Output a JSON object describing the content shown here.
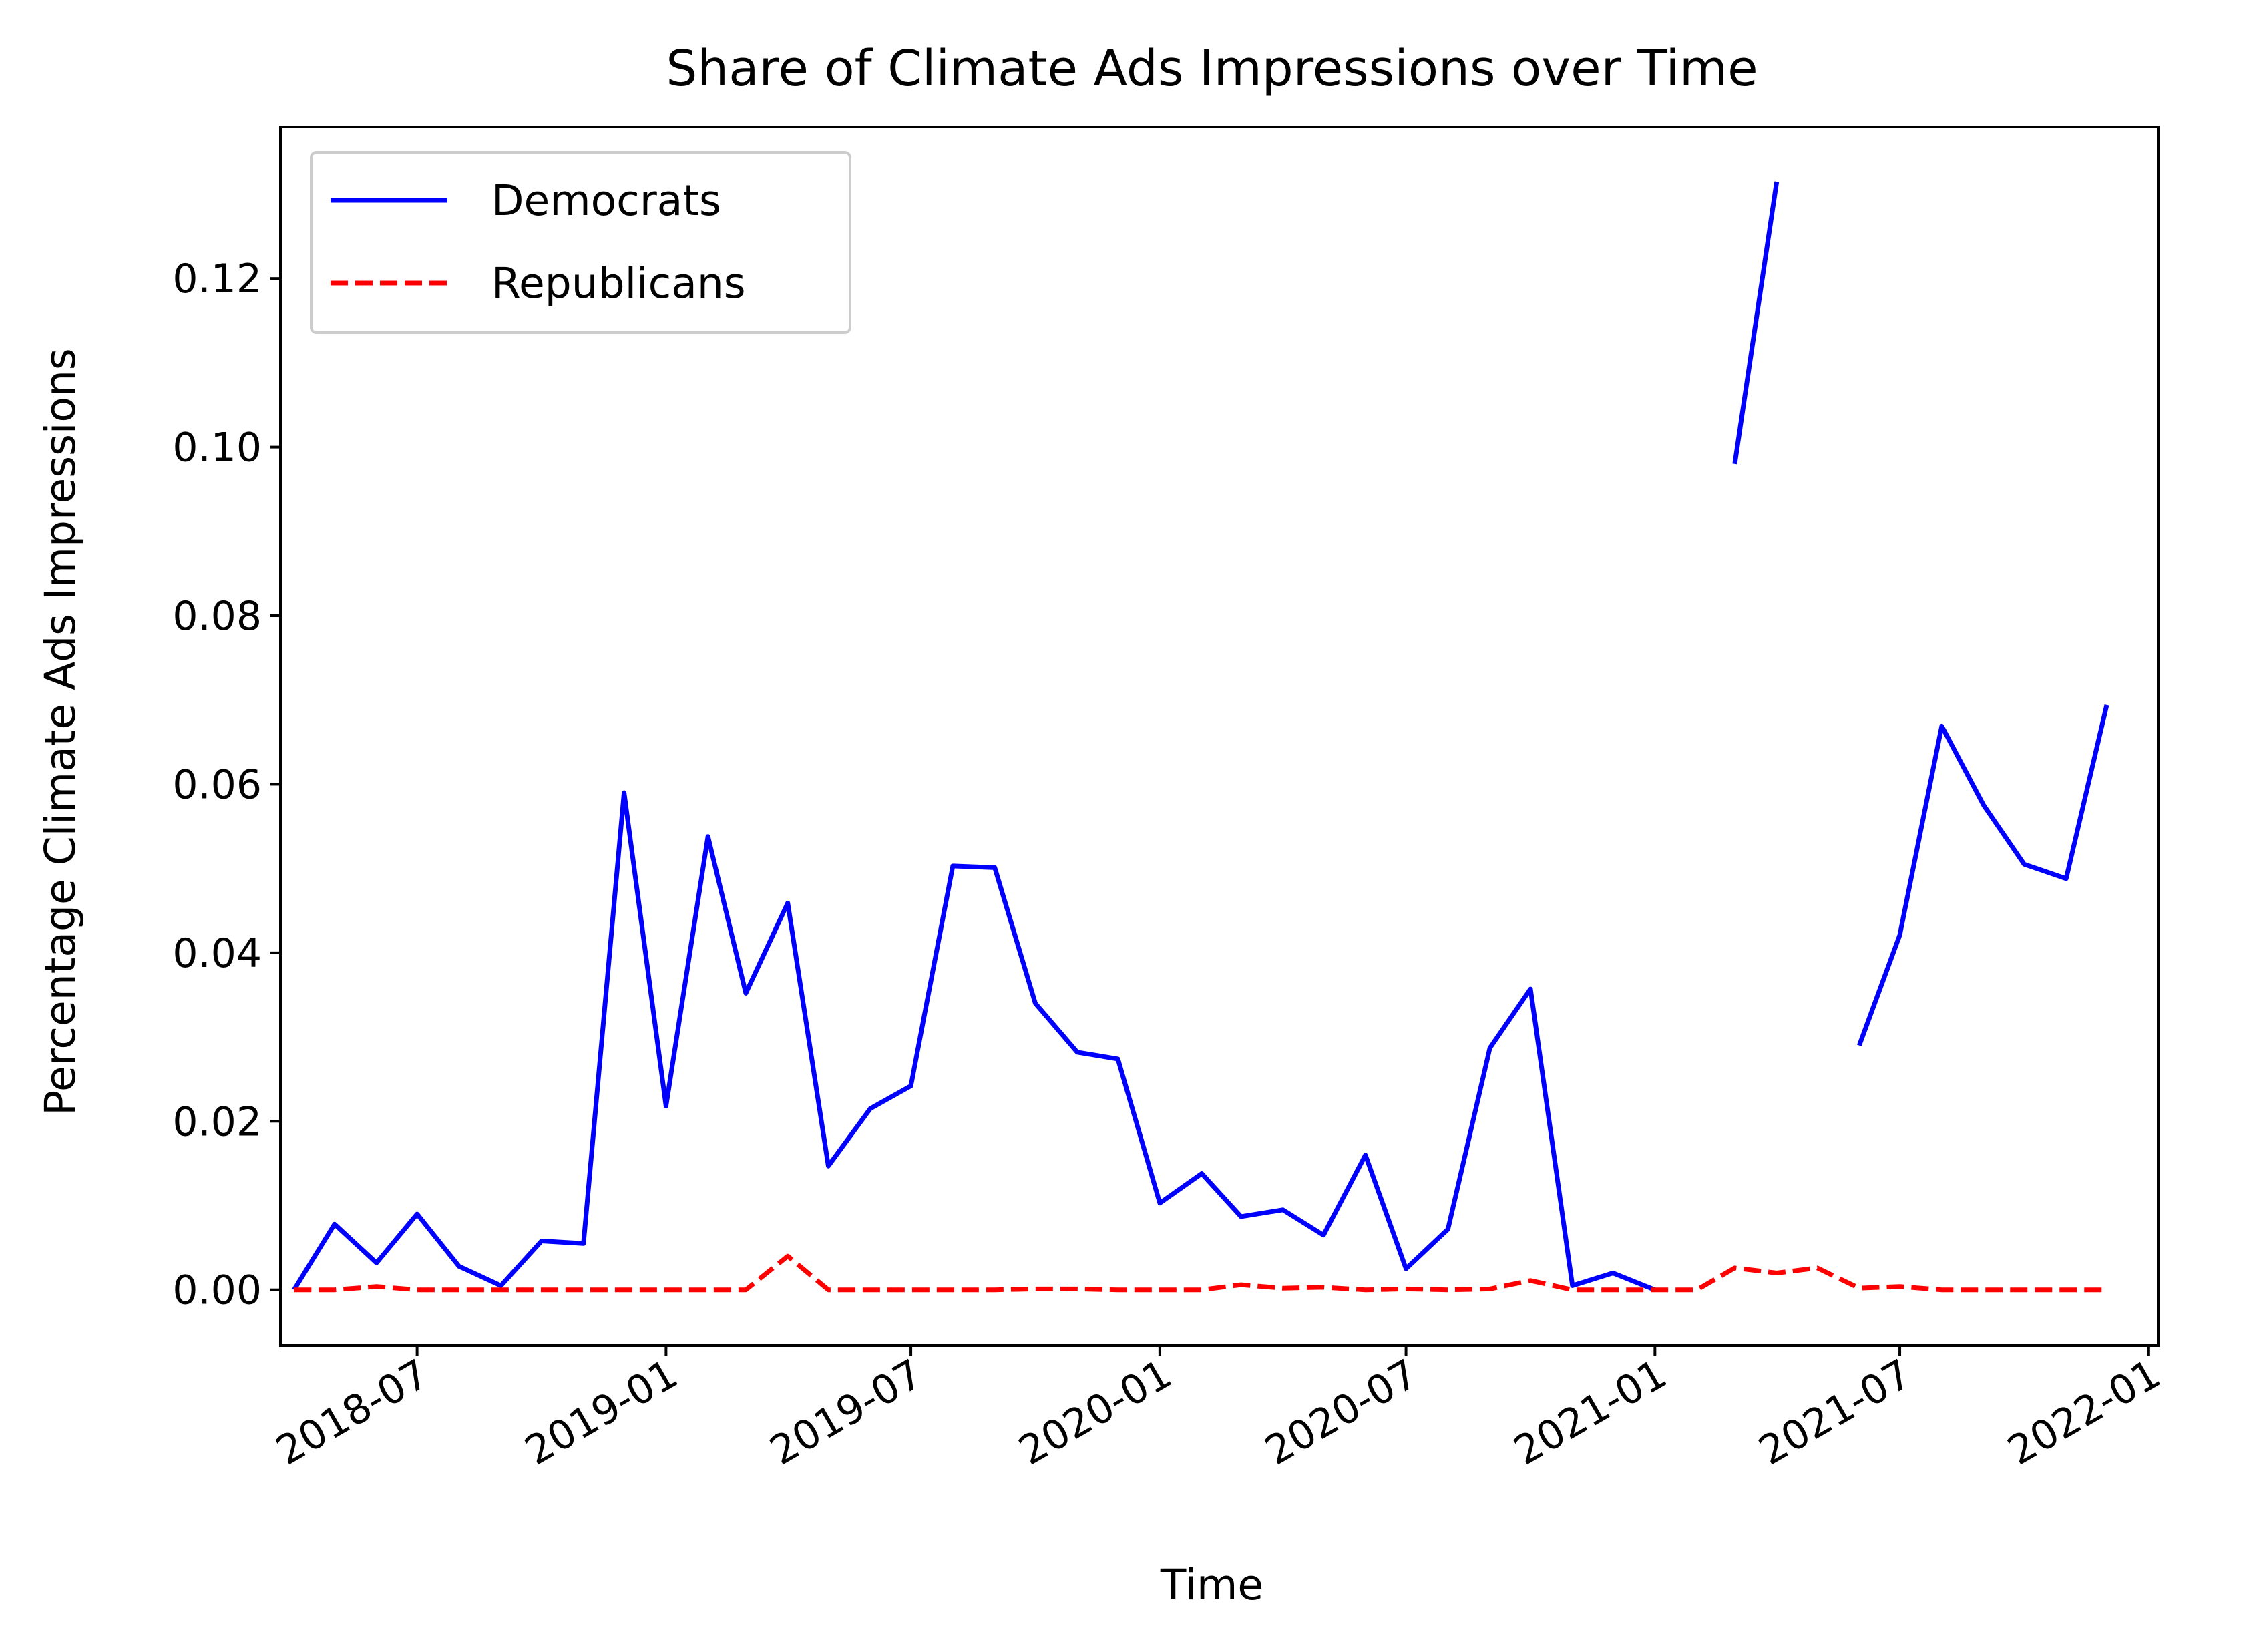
{
  "chart_data": {
    "type": "line",
    "title": "Share of Climate Ads Impressions over Time",
    "xlabel": "Time",
    "ylabel": "Percentage Climate Ads Impressions",
    "x_ticks": [
      "2018-07",
      "2019-01",
      "2019-07",
      "2020-01",
      "2020-07",
      "2021-01",
      "2021-07",
      "2022-01"
    ],
    "y_ticks": [
      "0.00",
      "0.02",
      "0.04",
      "0.06",
      "0.08",
      "0.10",
      "0.12"
    ],
    "xlim": [
      "2018-03-22",
      "2022-01-08"
    ],
    "ylim": [
      -0.0066,
      0.138
    ],
    "grid": false,
    "legend": {
      "position": "top-left"
    },
    "x": [
      "2018-04-01",
      "2018-05-01",
      "2018-06-01",
      "2018-07-01",
      "2018-08-01",
      "2018-09-01",
      "2018-10-01",
      "2018-11-01",
      "2018-12-01",
      "2019-01-01",
      "2019-02-01",
      "2019-03-01",
      "2019-04-01",
      "2019-05-01",
      "2019-06-01",
      "2019-07-01",
      "2019-08-01",
      "2019-09-01",
      "2019-10-01",
      "2019-11-01",
      "2019-12-01",
      "2020-01-01",
      "2020-02-01",
      "2020-03-01",
      "2020-04-01",
      "2020-05-01",
      "2020-06-01",
      "2020-07-01",
      "2020-08-01",
      "2020-09-01",
      "2020-10-01",
      "2020-11-01",
      "2020-12-01",
      "2021-01-01",
      "2021-02-01",
      "2021-03-01",
      "2021-04-01",
      "2021-05-01",
      "2021-06-01",
      "2021-07-01",
      "2021-08-01",
      "2021-09-01",
      "2021-10-01",
      "2021-11-01",
      "2021-12-01"
    ],
    "series": [
      {
        "name": "Democrats",
        "color": "#0000ff",
        "style": "solid",
        "values": [
          0.0,
          0.0078,
          0.0032,
          0.009,
          0.0028,
          0.0005,
          0.0058,
          0.0055,
          0.059,
          0.0218,
          0.0538,
          0.0352,
          0.0459,
          0.0147,
          0.0215,
          0.0242,
          0.0503,
          0.0501,
          0.034,
          0.0282,
          0.0274,
          0.0103,
          0.0138,
          0.0087,
          0.0095,
          0.0065,
          0.016,
          0.0025,
          0.0072,
          0.0287,
          0.0357,
          0.0005,
          0.002,
          0.0,
          null,
          0.098,
          0.1315,
          null,
          0.029,
          0.0421,
          0.0669,
          0.0575,
          0.0505,
          0.0488,
          0.0694
        ],
        "_note_gap": "Democrats line breaks between 2021-01 and 2021-03 where no data is drawn"
      },
      {
        "name": "Republicans",
        "color": "#ff0000",
        "style": "dashed",
        "values": [
          0.0,
          0.0,
          0.0004,
          0.0,
          0.0,
          0.0,
          0.0,
          0.0,
          0.0,
          0.0,
          0.0,
          0.0,
          0.004,
          0.0,
          0.0,
          0.0,
          0.0,
          0.0,
          0.0001,
          0.0001,
          0.0,
          0.0,
          0.0,
          0.0006,
          0.0002,
          0.0003,
          0.0,
          0.0001,
          0.0,
          0.0001,
          0.0011,
          0.0,
          0.0,
          0.0,
          0.0,
          0.0026,
          0.002,
          0.0026,
          0.0002,
          0.0004,
          0.0,
          0.0,
          0.0,
          0.0,
          0.0
        ]
      }
    ]
  }
}
